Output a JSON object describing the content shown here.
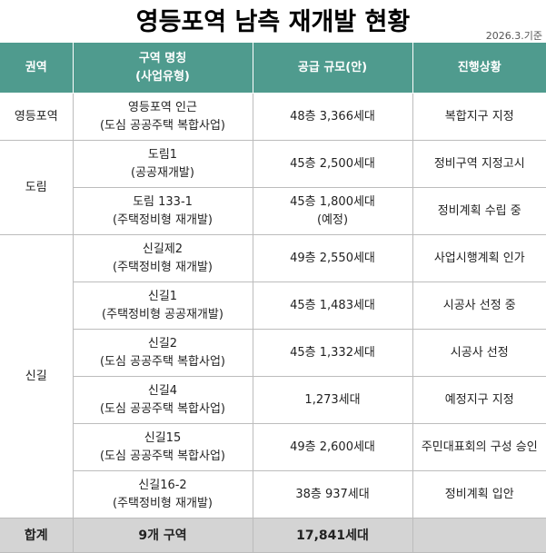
{
  "title": "영등포역 남측 재개발 현황",
  "date_note": "2026.3.기준",
  "colors": {
    "header_bg": "#4f9b8e",
    "total_bg": "#d4d4d4"
  },
  "headers": [
    "권역",
    "구역 명칭\n(사업유형)",
    "공급 규모(안)",
    "진행상황"
  ],
  "header_lines": {
    "name_1": "구역 명칭",
    "name_2": "(사업유형)"
  },
  "groups": [
    {
      "region": "영등포역",
      "rows": [
        {
          "name": "영등포역 인근",
          "type": "(도심 공공주택 복합사업)",
          "scale": "48층 3,366세대",
          "scale2": "",
          "status": "복합지구 지정"
        }
      ]
    },
    {
      "region": "도림",
      "rows": [
        {
          "name": "도림1",
          "type": "(공공재개발)",
          "scale": "45층 2,500세대",
          "scale2": "",
          "status": "정비구역 지정고시"
        },
        {
          "name": "도림 133-1",
          "type": "(주택정비형 재개발)",
          "scale": "45층 1,800세대",
          "scale2": "(예정)",
          "status": "정비계획 수립 중"
        }
      ]
    },
    {
      "region": "신길",
      "rows": [
        {
          "name": "신길제2",
          "type": "(주택정비형 재개발)",
          "scale": "49층 2,550세대",
          "scale2": "",
          "status": "사업시행계획 인가"
        },
        {
          "name": "신길1",
          "type": "(주택정비형 공공재개발)",
          "scale": "45층 1,483세대",
          "scale2": "",
          "status": "시공사 선정 중"
        },
        {
          "name": "신길2",
          "type": "(도심 공공주택 복합사업)",
          "scale": "45층 1,332세대",
          "scale2": "",
          "status": "시공사 선정"
        },
        {
          "name": "신길4",
          "type": "(도심 공공주택 복합사업)",
          "scale": "1,273세대",
          "scale2": "",
          "status": "예정지구 지정"
        },
        {
          "name": "신길15",
          "type": "(도심 공공주택 복합사업)",
          "scale": "49층 2,600세대",
          "scale2": "",
          "status": "주민대표회의 구성 승인"
        },
        {
          "name": "신길16-2",
          "type": "(주택정비형 재개발)",
          "scale": "38층 937세대",
          "scale2": "",
          "status": "정비계획 입안"
        }
      ]
    }
  ],
  "total": {
    "label": "합계",
    "count": "9개 구역",
    "scale": "17,841세대",
    "status": ""
  }
}
